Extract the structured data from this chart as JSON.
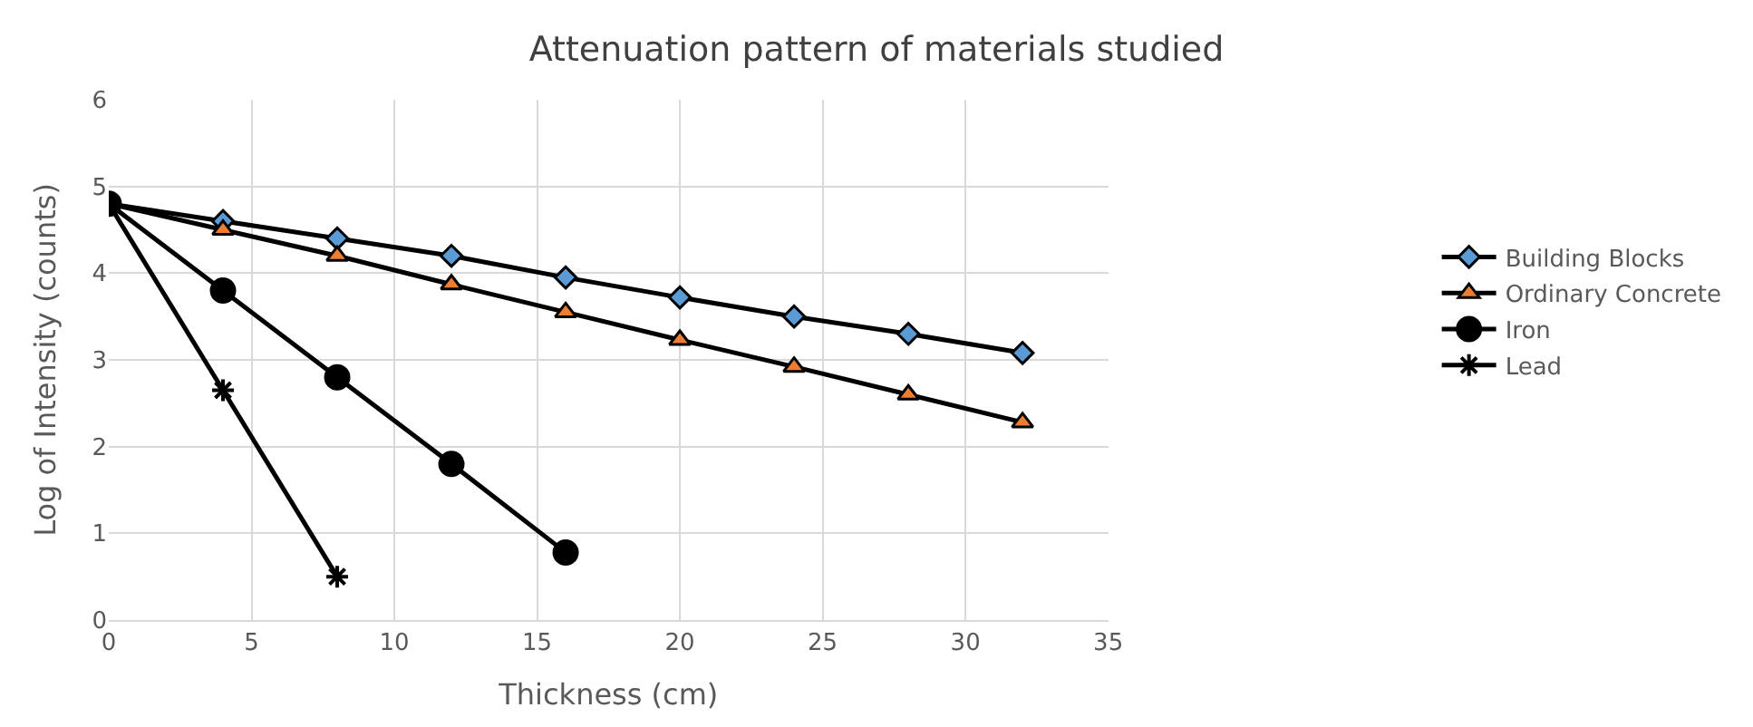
{
  "chart_data": {
    "type": "line",
    "title": "Attenuation pattern of materials studied",
    "xlabel": "Thickness (cm)",
    "ylabel": "Log of Intensity (counts)",
    "xlim": [
      0,
      35
    ],
    "xticks": [
      0,
      5,
      10,
      15,
      20,
      25,
      30,
      35
    ],
    "ylim": [
      0,
      6
    ],
    "yticks": [
      0,
      1,
      2,
      3,
      4,
      5,
      6
    ],
    "grid": true,
    "legend": "right",
    "series": [
      {
        "name": "Building Blocks",
        "color": "#5b9bd5",
        "marker": "diamond",
        "x": [
          0,
          4,
          8,
          12,
          16,
          20,
          24,
          28,
          32
        ],
        "values": [
          4.8,
          4.6,
          4.4,
          4.2,
          3.95,
          3.72,
          3.5,
          3.3,
          3.08
        ]
      },
      {
        "name": "Ordinary Concrete",
        "color": "#ed7d31",
        "marker": "triangle",
        "x": [
          0,
          4,
          8,
          12,
          16,
          20,
          24,
          28,
          32
        ],
        "values": [
          4.8,
          4.5,
          4.2,
          3.87,
          3.55,
          3.23,
          2.92,
          2.6,
          2.28
        ]
      },
      {
        "name": "Iron",
        "color": "#000000",
        "marker": "circle",
        "x": [
          0,
          4,
          8,
          12,
          16
        ],
        "values": [
          4.8,
          3.8,
          2.8,
          1.8,
          0.78
        ]
      },
      {
        "name": "Lead",
        "color": "#000000",
        "marker": "cross",
        "x": [
          0,
          4,
          8
        ],
        "values": [
          4.8,
          2.65,
          0.5
        ]
      }
    ]
  }
}
